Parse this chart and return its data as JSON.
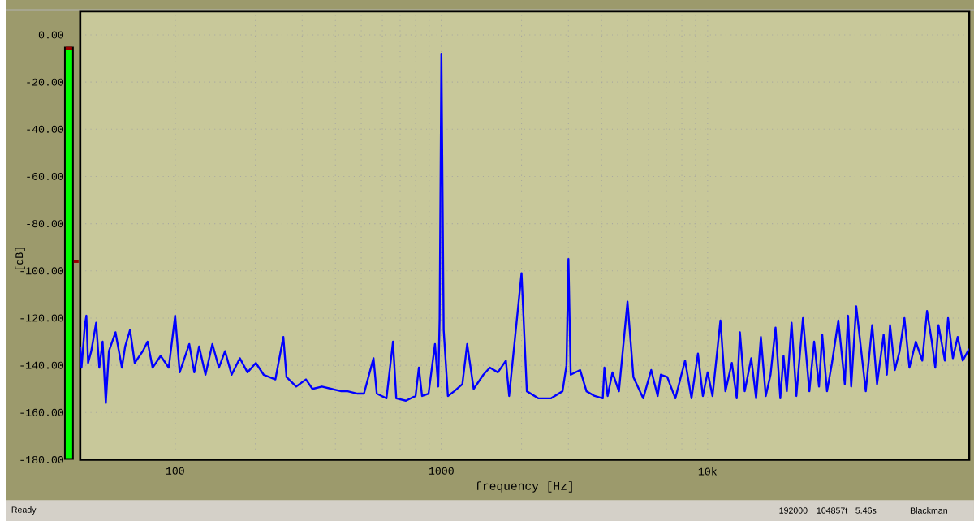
{
  "chart_data": {
    "type": "line",
    "xlabel": "frequency [Hz]",
    "ylabel": "[dB]",
    "log": "x",
    "grid": true,
    "marker": "none",
    "line_style": "solid",
    "xlim": [
      44,
      96000
    ],
    "ylim": [
      -180,
      10
    ],
    "xticks": [
      100,
      1000,
      {
        "value": 10000,
        "label": "10k"
      }
    ],
    "yticks": [
      {
        "value": 0,
        "label": "0.00"
      },
      {
        "value": -20,
        "label": "-20.00"
      },
      {
        "value": -40,
        "label": "-40.00"
      },
      {
        "value": -60,
        "label": "-60.00"
      },
      {
        "value": -80,
        "label": "-80.00"
      },
      {
        "value": -100,
        "label": "-100.00"
      },
      {
        "value": -120,
        "label": "-120.00"
      },
      {
        "value": -140,
        "label": "-140.00"
      },
      {
        "value": -160,
        "label": "-160.00"
      },
      {
        "value": -180,
        "label": "-180.00"
      }
    ],
    "annotations": [
      "Ready",
      "192000",
      "104857t",
      "5.46s",
      "Blackman"
    ],
    "series": [
      {
        "color": "#0000ff",
        "x": [
          44,
          44.5,
          45.8,
          46.4,
          47.1,
          48.4,
          50.5,
          51.9,
          53.4,
          54.9,
          56.4,
          59.7,
          63.1,
          64.9,
          67.7,
          70.5,
          75.6,
          78.8,
          82.3,
          88.2,
          94.6,
          100,
          104,
          113,
          118,
          123,
          130,
          138,
          146,
          154,
          163,
          175,
          187,
          201,
          215,
          238,
          255,
          262,
          285,
          310,
          328,
          356,
          387,
          421,
          445,
          484,
          512,
          556,
          572,
          622,
          658,
          677,
          736,
          800,
          823,
          846,
          895,
          946,
          973,
          985,
          1000,
          1020,
          1058,
          1117,
          1199,
          1250,
          1322,
          1438,
          1521,
          1630,
          1747,
          1797,
          2000,
          2094,
          2311,
          2583,
          2851,
          2950,
          3000,
          3060,
          3319,
          3508,
          3765,
          4037,
          4095,
          4210,
          4389,
          4642,
          5000,
          5262,
          5728,
          6138,
          6490,
          6672,
          7052,
          7563,
          8225,
          8697,
          9197,
          9594,
          10000,
          10430,
          11170,
          11660,
          12330,
          12860,
          13220,
          13780,
          14580,
          15210,
          15850,
          16530,
          17230,
          17990,
          18750,
          19280,
          19830,
          20670,
          21540,
          22800,
          24100,
          25120,
          26200,
          26940,
          28080,
          29310,
          30970,
          32750,
          33670,
          34610,
          36140,
          39260,
          41500,
          43280,
          45810,
          47100,
          48420,
          50470,
          52600,
          54830,
          57260,
          60530,
          63980,
          66680,
          69500,
          71610,
          73620,
          77800,
          79980,
          83370,
          86900,
          90780,
          96000
        ],
        "values": [
          -132,
          -141,
          -123,
          -119,
          -139,
          -134,
          -122,
          -141,
          -130,
          -156,
          -134,
          -126,
          -141,
          -132,
          -125,
          -139,
          -134,
          -130,
          -141,
          -136,
          -141,
          -119,
          -143,
          -131,
          -143,
          -132,
          -144,
          -131,
          -141,
          -134,
          -144,
          -137,
          -143,
          -139,
          -144,
          -146,
          -128,
          -145,
          -149,
          -146,
          -150,
          -149,
          -150,
          -151,
          -151,
          -152,
          -152,
          -137,
          -152,
          -154,
          -130,
          -154,
          -155,
          -153,
          -141,
          -153,
          -152,
          -131,
          -149,
          -120,
          -8,
          -125,
          -153,
          -151,
          -148,
          -131,
          -150,
          -144,
          -141,
          -143,
          -138,
          -153,
          -101,
          -151,
          -154,
          -154,
          -151,
          -140,
          -95,
          -144,
          -142,
          -151,
          -153,
          -154,
          -141,
          -153,
          -143,
          -151,
          -113,
          -145,
          -154,
          -142,
          -153,
          -144,
          -145,
          -154,
          -138,
          -154,
          -135,
          -153,
          -143,
          -153,
          -121,
          -151,
          -139,
          -154,
          -126,
          -151,
          -137,
          -154,
          -128,
          -153,
          -144,
          -124,
          -154,
          -136,
          -151,
          -122,
          -153,
          -120,
          -151,
          -130,
          -149,
          -127,
          -151,
          -139,
          -121,
          -148,
          -119,
          -149,
          -115,
          -151,
          -123,
          -148,
          -127,
          -144,
          -123,
          -142,
          -134,
          -120,
          -141,
          -130,
          -138,
          -117,
          -130,
          -141,
          -123,
          -138,
          -120,
          -137,
          -128,
          -138,
          -133
        ]
      }
    ]
  }
}
